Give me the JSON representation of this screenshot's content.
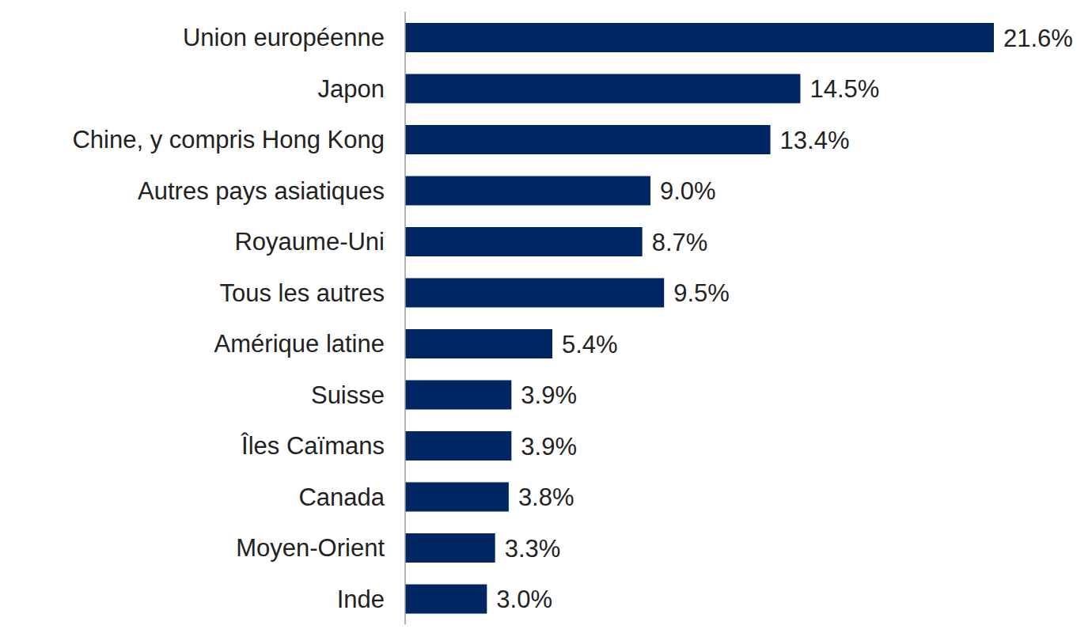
{
  "chart_data": {
    "type": "bar",
    "orientation": "horizontal",
    "categories": [
      "Union européenne",
      "Japon",
      "Chine, y compris Hong Kong",
      "Autres pays asiatiques",
      "Royaume-Uni",
      "Tous les autres",
      "Amérique latine",
      "Suisse",
      "Îles Caïmans",
      "Canada",
      "Moyen-Orient",
      "Inde"
    ],
    "values": [
      21.6,
      14.5,
      13.4,
      9.0,
      8.7,
      9.5,
      5.4,
      3.9,
      3.9,
      3.8,
      3.3,
      3.0
    ],
    "value_labels": [
      "21.6%",
      "14.5%",
      "13.4%",
      "9.0%",
      "8.7%",
      "9.5%",
      "5.4%",
      "3.9%",
      "3.9%",
      "3.8%",
      "3.3%",
      "3.0%"
    ],
    "color": "#002663",
    "xlim": [
      0,
      21.6
    ],
    "data_labels": true,
    "tick_labels": "y",
    "grid": false
  }
}
